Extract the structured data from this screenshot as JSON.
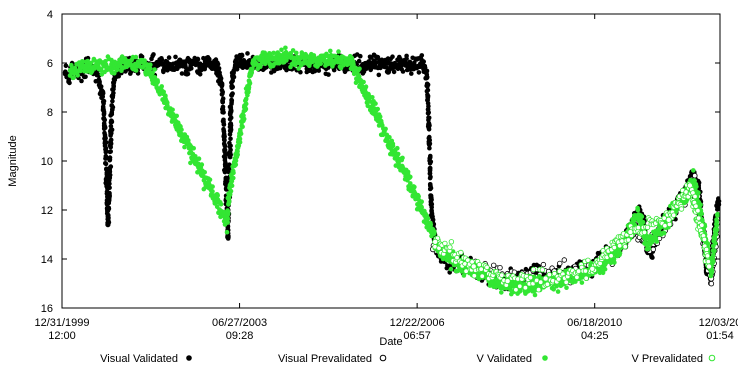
{
  "chart_data": {
    "type": "scatter",
    "title": "",
    "xlabel": "Date",
    "ylabel": "Magnitude",
    "xlim": [
      "1999-12-31T12:00",
      "2012-12-03T01:54"
    ],
    "ylim": [
      16,
      4
    ],
    "y_inverted": true,
    "grid": false,
    "legend_position": "bottom",
    "x_ticks": [
      {
        "date": "1999-12-31T12:00",
        "line1": "12/31/1999",
        "line2": "12:00"
      },
      {
        "date": "2003-06-27T09:28",
        "line1": "06/27/2003",
        "line2": "09:28"
      },
      {
        "date": "2006-12-22T06:57",
        "line1": "12/22/2006",
        "line2": "06:57"
      },
      {
        "date": "2010-06-18T04:25",
        "line1": "06/18/2010",
        "line2": "04:25"
      },
      {
        "date": "2012-12-03T01:54",
        "line1": "12/03/20",
        "line2": "01:54"
      }
    ],
    "y_ticks": [
      4,
      6,
      8,
      10,
      12,
      14,
      16
    ],
    "series": [
      {
        "name": "Visual Validated",
        "marker": "filled-circle",
        "color": "#000000",
        "trend": [
          [
            "2000-01-01",
            6.3
          ],
          [
            "2000-02-15",
            6.5
          ],
          [
            "2000-04-01",
            6.2
          ],
          [
            "2000-05-15",
            6.4
          ],
          [
            "2000-07-01",
            6.1
          ],
          [
            "2000-08-10",
            6.3
          ],
          [
            "2000-09-20",
            6.5
          ],
          [
            "2000-10-15",
            7.2
          ],
          [
            "2000-11-01",
            8.6
          ],
          [
            "2000-11-15",
            10.8
          ],
          [
            "2000-11-25",
            12.6
          ],
          [
            "2000-12-05",
            11.4
          ],
          [
            "2000-12-15",
            8.8
          ],
          [
            "2001-01-05",
            6.8
          ],
          [
            "2001-02-15",
            6.2
          ],
          [
            "2001-04-01",
            6.0
          ],
          [
            "2001-06-01",
            6.1
          ],
          [
            "2001-08-01",
            6.0
          ],
          [
            "2001-10-01",
            6.1
          ],
          [
            "2001-12-01",
            6.0
          ],
          [
            "2002-02-01",
            6.1
          ],
          [
            "2002-04-01",
            6.0
          ],
          [
            "2002-06-01",
            6.1
          ],
          [
            "2002-08-01",
            6.0
          ],
          [
            "2002-10-01",
            6.1
          ],
          [
            "2002-12-01",
            6.0
          ],
          [
            "2003-01-20",
            6.2
          ],
          [
            "2003-02-20",
            6.9
          ],
          [
            "2003-03-10",
            9.0
          ],
          [
            "2003-03-25",
            11.6
          ],
          [
            "2003-04-05",
            13.1
          ],
          [
            "2003-04-15",
            11.0
          ],
          [
            "2003-04-25",
            8.0
          ],
          [
            "2003-05-10",
            6.5
          ],
          [
            "2003-06-01",
            6.0
          ],
          [
            "2003-08-01",
            6.0
          ],
          [
            "2003-10-01",
            6.1
          ],
          [
            "2003-12-01",
            6.0
          ],
          [
            "2004-02-01",
            6.1
          ],
          [
            "2004-04-01",
            6.0
          ],
          [
            "2004-06-01",
            6.1
          ],
          [
            "2004-08-01",
            6.0
          ],
          [
            "2004-10-01",
            6.0
          ],
          [
            "2004-12-01",
            6.1
          ],
          [
            "2005-02-01",
            6.0
          ],
          [
            "2005-04-01",
            6.1
          ],
          [
            "2005-06-01",
            6.0
          ],
          [
            "2005-08-01",
            6.1
          ],
          [
            "2005-10-01",
            6.0
          ],
          [
            "2005-12-01",
            6.1
          ],
          [
            "2006-02-01",
            6.0
          ],
          [
            "2006-04-01",
            6.1
          ],
          [
            "2006-06-01",
            6.0
          ],
          [
            "2006-08-01",
            6.1
          ],
          [
            "2006-10-01",
            6.0
          ],
          [
            "2006-12-01",
            6.1
          ],
          [
            "2007-02-01",
            6.1
          ],
          [
            "2007-03-01",
            6.6
          ],
          [
            "2007-03-15",
            8.5
          ],
          [
            "2007-04-01",
            11.5
          ],
          [
            "2007-04-20",
            13.0
          ],
          [
            "2007-05-20",
            13.7
          ],
          [
            "2007-07-01",
            14.0
          ],
          [
            "2007-09-01",
            14.2
          ],
          [
            "2007-11-01",
            14.1
          ],
          [
            "2008-01-01",
            14.3
          ],
          [
            "2008-03-01",
            14.5
          ],
          [
            "2008-05-01",
            14.6
          ],
          [
            "2008-07-01",
            14.8
          ],
          [
            "2008-09-01",
            14.9
          ],
          [
            "2008-11-01",
            14.8
          ],
          [
            "2009-01-01",
            14.9
          ],
          [
            "2009-03-01",
            14.7
          ],
          [
            "2009-05-01",
            14.6
          ],
          [
            "2009-07-01",
            14.8
          ],
          [
            "2009-09-01",
            14.6
          ],
          [
            "2009-11-01",
            14.7
          ],
          [
            "2010-01-01",
            14.5
          ],
          [
            "2010-03-01",
            14.4
          ],
          [
            "2010-05-01",
            14.6
          ],
          [
            "2010-07-01",
            14.2
          ],
          [
            "2010-09-01",
            13.8
          ],
          [
            "2010-11-01",
            13.8
          ],
          [
            "2011-01-01",
            13.3
          ],
          [
            "2011-03-01",
            12.8
          ],
          [
            "2011-05-01",
            12.1
          ],
          [
            "2011-06-01",
            12.4
          ],
          [
            "2011-07-01",
            13.7
          ],
          [
            "2011-08-01",
            13.6
          ],
          [
            "2011-10-01",
            12.8
          ],
          [
            "2011-12-01",
            12.3
          ],
          [
            "2012-02-01",
            11.8
          ],
          [
            "2012-04-01",
            11.2
          ],
          [
            "2012-05-20",
            10.6
          ],
          [
            "2012-07-01",
            11.0
          ],
          [
            "2012-08-01",
            12.8
          ],
          [
            "2012-09-01",
            14.6
          ],
          [
            "2012-10-01",
            14.3
          ],
          [
            "2012-11-01",
            12.3
          ],
          [
            "2012-12-01",
            11.6
          ]
        ]
      },
      {
        "name": "Visual Prevalidated",
        "marker": "hollow-circle",
        "color": "#000000",
        "trend": [
          [
            "2007-04-15",
            13.6
          ],
          [
            "2007-08-01",
            14.0
          ],
          [
            "2008-01-01",
            14.3
          ],
          [
            "2008-06-01",
            14.6
          ],
          [
            "2008-11-01",
            14.8
          ],
          [
            "2009-04-01",
            14.7
          ],
          [
            "2009-09-01",
            14.5
          ],
          [
            "2010-02-01",
            14.4
          ],
          [
            "2010-07-01",
            14.3
          ],
          [
            "2010-12-01",
            13.7
          ],
          [
            "2011-04-01",
            12.6
          ],
          [
            "2011-07-01",
            13.6
          ],
          [
            "2011-11-01",
            12.6
          ],
          [
            "2012-03-01",
            11.6
          ],
          [
            "2012-06-01",
            10.9
          ],
          [
            "2012-08-15",
            13.4
          ],
          [
            "2012-10-01",
            14.8
          ],
          [
            "2012-11-15",
            12.5
          ]
        ]
      },
      {
        "name": "V Validated",
        "marker": "filled-circle",
        "color": "#33e633",
        "trend": [
          [
            "2000-03-01",
            6.3
          ],
          [
            "2001-04-01",
            6.0
          ],
          [
            "2001-09-01",
            6.1
          ],
          [
            "2003-04-01",
            12.5
          ],
          [
            "2003-04-10",
            11.5
          ],
          [
            "2003-10-01",
            6.0
          ],
          [
            "2004-03-01",
            5.8
          ],
          [
            "2005-01-01",
            5.9
          ],
          [
            "2005-09-01",
            5.9
          ],
          [
            "2007-04-01",
            12.8
          ],
          [
            "2007-06-01",
            13.6
          ],
          [
            "2007-10-01",
            14.2
          ],
          [
            "2008-03-01",
            14.5
          ],
          [
            "2008-08-01",
            15.0
          ],
          [
            "2009-01-01",
            15.2
          ],
          [
            "2009-06-01",
            15.0
          ],
          [
            "2009-11-01",
            14.9
          ],
          [
            "2010-04-01",
            14.6
          ],
          [
            "2010-09-01",
            14.2
          ],
          [
            "2011-01-01",
            13.4
          ],
          [
            "2011-05-01",
            12.2
          ],
          [
            "2011-07-01",
            13.4
          ],
          [
            "2011-11-01",
            12.6
          ],
          [
            "2012-03-01",
            11.6
          ],
          [
            "2012-06-01",
            10.8
          ],
          [
            "2012-08-15",
            13.0
          ],
          [
            "2012-10-01",
            14.5
          ],
          [
            "2012-11-15",
            12.2
          ]
        ]
      },
      {
        "name": "V Prevalidated",
        "marker": "hollow-circle",
        "color": "#33e633",
        "trend": [
          [
            "2007-05-01",
            13.3
          ],
          [
            "2008-02-01",
            14.3
          ],
          [
            "2008-10-01",
            14.9
          ],
          [
            "2009-07-01",
            14.8
          ],
          [
            "2010-06-01",
            14.4
          ],
          [
            "2011-03-01",
            12.9
          ],
          [
            "2011-12-01",
            12.4
          ],
          [
            "2012-05-01",
            11.0
          ],
          [
            "2012-09-15",
            14.3
          ]
        ]
      }
    ]
  }
}
